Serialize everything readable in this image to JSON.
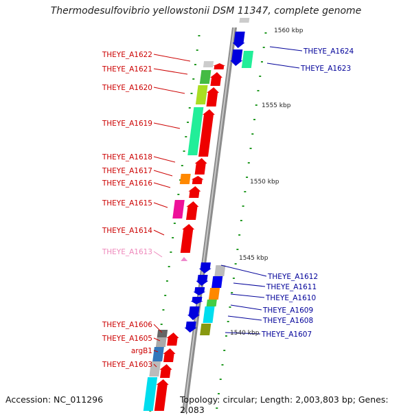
{
  "title": "Thermodesulfovibrio yellowstonii DSM 11347, complete genome",
  "footer": {
    "accession": "Accession: NC_011296",
    "stats": "Topology: circular; Length: 2,003,803 bp; Genes: 2,083"
  },
  "scale_labels": [
    "1560 kbp",
    "1555 kbp",
    "1550 kbp",
    "1545 kbp",
    "1540 kbp"
  ],
  "colors": {
    "minus_label": "#cc0000",
    "plus_label": "#000099",
    "faded_label": "#ee88bb",
    "arrow_red": "#ee0000",
    "arrow_blue": "#0000dd",
    "backbone": "#8c8c8c",
    "tick": "#229922"
  },
  "genes_minus_strand": [
    "THEYE_A1622",
    "THEYE_A1621",
    "THEYE_A1620",
    "THEYE_A1619",
    "THEYE_A1618",
    "THEYE_A1617",
    "THEYE_A1616",
    "THEYE_A1615",
    "THEYE_A1614",
    "THEYE_A1613",
    "THEYE_A1606",
    "THEYE_A1605",
    "argB1",
    "THEYE_A1603"
  ],
  "genes_plus_strand": [
    "THEYE_A1624",
    "THEYE_A1623",
    "THEYE_A1612",
    "THEYE_A1611",
    "THEYE_A1610",
    "THEYE_A1609",
    "THEYE_A1608",
    "THEYE_A1607"
  ]
}
